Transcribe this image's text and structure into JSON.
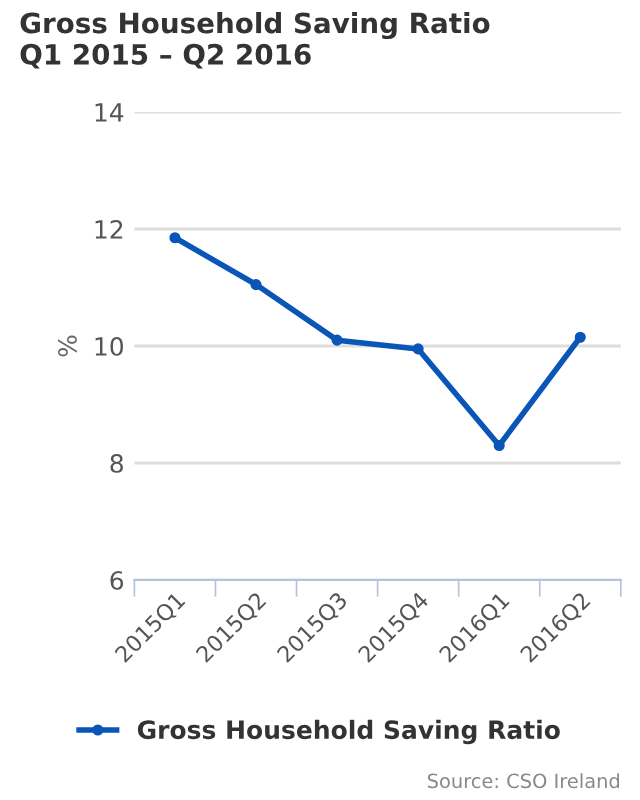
{
  "chart_data": {
    "type": "line",
    "title": "Gross Household Saving Ratio\nQ1 2015 – Q2 2016",
    "ylabel": "%",
    "categories": [
      "2015Q1",
      "2015Q2",
      "2015Q3",
      "2015Q4",
      "2016Q1",
      "2016Q2"
    ],
    "series": [
      {
        "name": "Gross Household Saving Ratio",
        "color": "#0a55b8",
        "values": [
          11.85,
          11.05,
          10.1,
          9.95,
          8.3,
          10.15
        ]
      }
    ],
    "ylim": [
      6,
      14
    ],
    "yticks": [
      6,
      8,
      10,
      12,
      14
    ],
    "grid": "y",
    "legend": "bottom",
    "marker": "circle",
    "line_style": "solid",
    "annotations": [
      "Source: CSO Ireland"
    ]
  }
}
